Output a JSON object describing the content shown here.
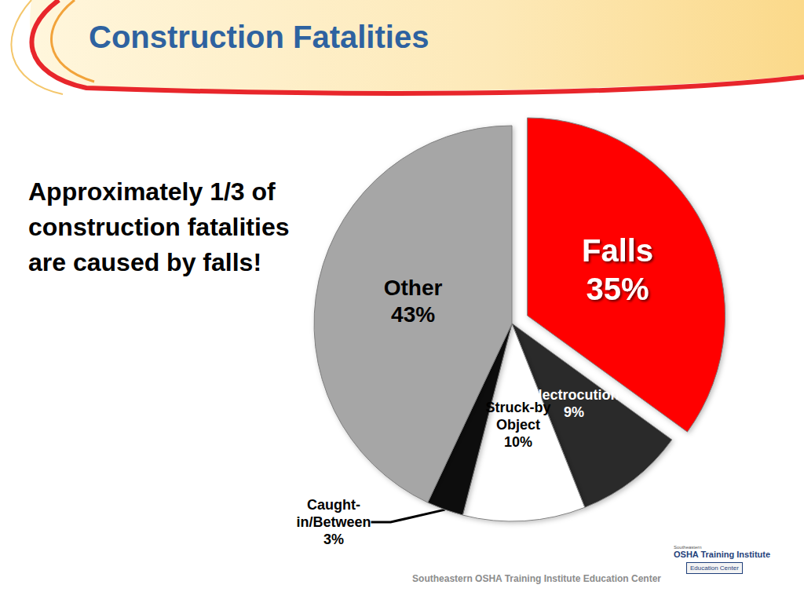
{
  "chart_data": {
    "type": "pie",
    "title": "Construction Fatalities",
    "categories": [
      "Falls",
      "Electrocution",
      "Struck-by Object",
      "Caught-in/Between",
      "Other"
    ],
    "values": [
      35,
      9,
      10,
      3,
      43
    ],
    "value_labels": [
      "35%",
      "9%",
      "10%",
      "3%",
      "43%"
    ],
    "colors": [
      "#ff0000",
      "#2b2b2b",
      "#ffffff",
      "#0d0d0d",
      "#a6a6a6"
    ],
    "data_labels": true,
    "annotations": [
      "Approximately 1/3 of construction fatalities are caused by falls!"
    ],
    "footer": "Southeastern OSHA Training Institute Education Center",
    "logo": [
      "Southeastern",
      "OSHA Training Institute",
      "Education Center"
    ]
  }
}
